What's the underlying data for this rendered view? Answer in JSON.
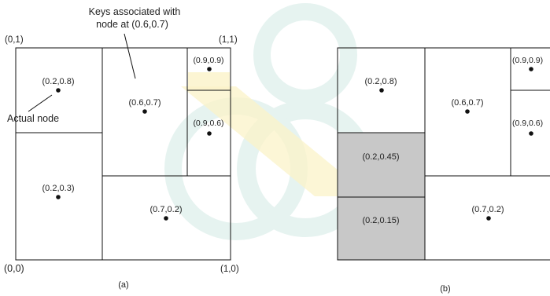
{
  "colors": {
    "line": "#111111",
    "text": "#222222",
    "shaded_region": "#c8c8c8",
    "watermark_teal": "#dcefeb",
    "watermark_yellow": "#fbf3c8"
  },
  "panel_a": {
    "caption": "(a)",
    "corners": {
      "top_left": "(0,1)",
      "top_right": "(1,1)",
      "bottom_left": "(0,0)",
      "bottom_right": "(1,0)"
    },
    "annotations": {
      "keys_line1": "Keys associated with",
      "keys_line2": "node at (0.6,0.7)",
      "actual_node": "Actual node"
    },
    "nodes": [
      {
        "label": "(0.2,0.8)"
      },
      {
        "label": "(0.6,0.7)"
      },
      {
        "label": "(0.9,0.9)"
      },
      {
        "label": "(0.9,0.6)"
      },
      {
        "label": "(0.2,0.3)"
      },
      {
        "label": "(0.7,0.2)"
      }
    ]
  },
  "panel_b": {
    "caption": "(b)",
    "nodes": [
      {
        "label": "(0.2,0.8)",
        "shaded": false
      },
      {
        "label": "(0.6,0.7)",
        "shaded": false
      },
      {
        "label": "(0.9,0.9)",
        "shaded": false
      },
      {
        "label": "(0.9,0.6)",
        "shaded": false
      },
      {
        "label": "(0.2,0.45)",
        "shaded": true
      },
      {
        "label": "(0.2,0.15)",
        "shaded": true
      },
      {
        "label": "(0.7,0.2)",
        "shaded": false
      }
    ]
  }
}
